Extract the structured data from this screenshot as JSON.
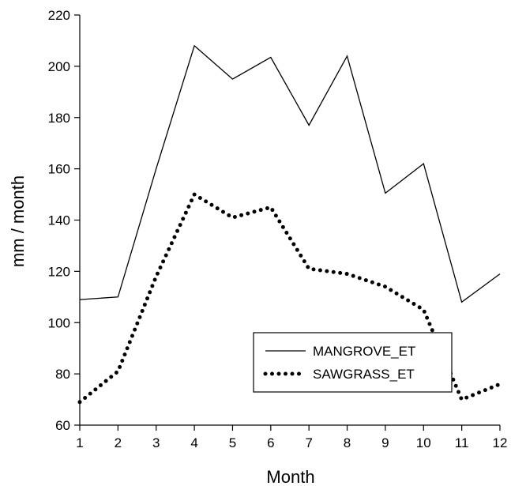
{
  "chart_data": {
    "type": "line",
    "title": "",
    "xlabel": "Month",
    "ylabel": "mm / month",
    "x": [
      1,
      2,
      3,
      4,
      5,
      6,
      7,
      8,
      9,
      10,
      11,
      12
    ],
    "xlim": [
      1,
      12
    ],
    "ylim": [
      60,
      220
    ],
    "xticks": [
      "1",
      "2",
      "3",
      "4",
      "5",
      "6",
      "7",
      "8",
      "9",
      "10",
      "11",
      "12"
    ],
    "yticks": [
      "60",
      "80",
      "100",
      "120",
      "140",
      "160",
      "180",
      "200",
      "220"
    ],
    "grid": false,
    "legend": "lower-right",
    "series": [
      {
        "name": "MANGROVE_ET",
        "style": "solid",
        "color": "#000000",
        "values": [
          109,
          110,
          160,
          208,
          195,
          203.5,
          177,
          204,
          150.5,
          162,
          108,
          119
        ]
      },
      {
        "name": "SAWGRASS_ET",
        "style": "dotted",
        "color": "#000000",
        "values": [
          69,
          81,
          118,
          150,
          141,
          145,
          121,
          119,
          114,
          105,
          70,
          76
        ]
      }
    ]
  }
}
